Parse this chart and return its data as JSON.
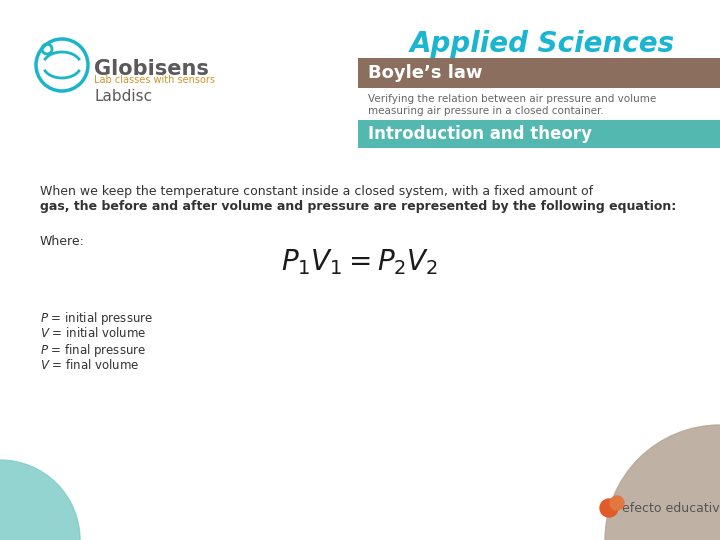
{
  "bg_color": "#ffffff",
  "title_applied": "Applied Sciences",
  "title_applied_color": "#1ab5d0",
  "boyles_law_text": "Boyle’s law",
  "boyles_bg_color": "#8b6e5e",
  "subtitle_line1": "Verifying the relation between air pressure and volume",
  "subtitle_line2": "measuring air pressure in a closed container.",
  "subtitle_color": "#666666",
  "intro_text": "Introduction and theory",
  "intro_bg_color": "#52b8b0",
  "intro_text_color": "#ffffff",
  "body_line1": "When we keep the temperature constant inside a closed system, with a fixed amount of",
  "body_line2": "gas, the before and after volume and pressure are represented by the following equation:",
  "body_where": "Where:",
  "legend1": "P = initial pressure",
  "legend2": "V = initial volume",
  "legend3": "P = final pressure",
  "legend4": "V = final volume",
  "globisens_text": "Globisens",
  "globisens_color": "#5a5a5a",
  "globisens_teal": "#1ab5c8",
  "lab_text": "Lab classes with sensors",
  "lab_text_color": "#d4952a",
  "labdisc_text": "Labdisc",
  "circle_bg_color": "#b8a99a",
  "circle_teal_color": "#80cdc8",
  "efecto_text": "efecto educativo",
  "efecto_color": "#e05c28",
  "efecto2_color": "#e07840"
}
